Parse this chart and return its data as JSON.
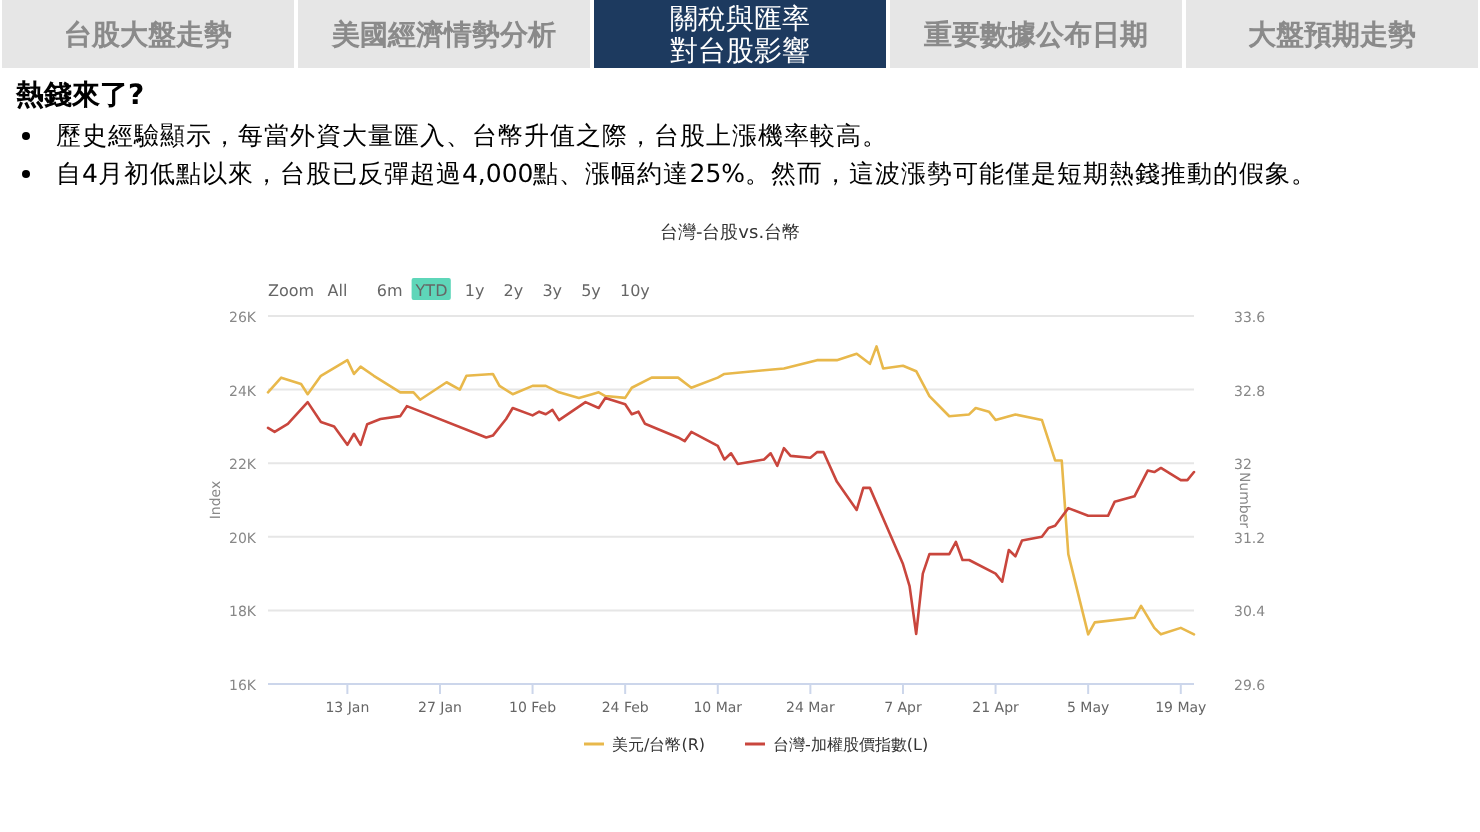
{
  "chart_data": {
    "type": "line",
    "title": "台灣-台股vs.台幣",
    "ylabel": "Index",
    "y2label": "Number",
    "annotations": [
      "台股大盤走勢",
      "美國經濟情勢分析",
      "關稅與匯率",
      "對台股影響",
      "重要數據公布日期",
      "大盤預期走勢",
      "熱錢來了?",
      "歷史經驗顯示，每當外資大量匯入、台幣升值之際，台股上漲機率較高。",
      "自4月初低點以來，台股已反彈超過4,000點、漲幅約達25%。然而，這波漲勢可能僅是短期熱錢推動的假象。",
      "Zoom",
      "All",
      "6m",
      "YTD",
      "1y",
      "2y",
      "3y",
      "5y",
      "10y"
    ],
    "xlim": [
      "--01-01",
      "--05-21"
    ],
    "xticks": [
      {
        "value": "--01-13",
        "label": "13 Jan"
      },
      {
        "value": "--01-27",
        "label": "27 Jan"
      },
      {
        "value": "--02-10",
        "label": "10 Feb"
      },
      {
        "value": "--02-24",
        "label": "24 Feb"
      },
      {
        "value": "--03-10",
        "label": "10 Mar"
      },
      {
        "value": "--03-24",
        "label": "24 Mar"
      },
      {
        "value": "--04-07",
        "label": "7 Apr"
      },
      {
        "value": "--04-21",
        "label": "21 Apr"
      },
      {
        "value": "--05-05",
        "label": "5 May"
      },
      {
        "value": "--05-19",
        "label": "19 May"
      }
    ],
    "ylim": [
      16000,
      26000
    ],
    "yticks": [
      {
        "value": 16000,
        "label": "16K"
      },
      {
        "value": 18000,
        "label": "18K"
      },
      {
        "value": 20000,
        "label": "20K"
      },
      {
        "value": 22000,
        "label": "22K"
      },
      {
        "value": 24000,
        "label": "24K"
      },
      {
        "value": 26000,
        "label": "26K"
      }
    ],
    "y2lim": [
      29.6,
      33.6
    ],
    "y2ticks": [
      29.6,
      30.4,
      31.2,
      32,
      32.8,
      33.6
    ],
    "grid": "y",
    "legend": "bottom",
    "marker": "none",
    "line_style": "solid",
    "series": [
      {
        "name": "美元/台幣(R)",
        "color": "#e8b84b",
        "axis": "y2",
        "x": [
          "--01-01",
          "--01-03",
          "--01-06",
          "--01-07",
          "--01-09",
          "--01-13",
          "--01-14",
          "--01-15",
          "--01-17",
          "--01-21",
          "--01-23",
          "--01-24",
          "--01-28",
          "--01-30",
          "--01-31",
          "--02-04",
          "--02-05",
          "--02-07",
          "--02-10",
          "--02-12",
          "--02-14",
          "--02-17",
          "--02-19",
          "--02-20",
          "--02-21",
          "--02-24",
          "--02-25",
          "--02-28",
          "--03-04",
          "--03-06",
          "--03-10",
          "--03-11",
          "--03-17",
          "--03-20",
          "--03-25",
          "--03-28",
          "--03-31",
          "--04-02",
          "--04-03",
          "--04-04",
          "--04-07",
          "--04-09",
          "--04-11",
          "--04-14",
          "--04-17",
          "--04-18",
          "--04-20",
          "--04-21",
          "--04-24",
          "--04-28",
          "--04-30",
          "--05-01",
          "--05-02",
          "--05-05",
          "--05-06",
          "--05-12",
          "--05-13",
          "--05-15",
          "--05-16",
          "--05-19",
          "--05-21"
        ],
        "values": [
          32.77,
          32.93,
          32.86,
          32.75,
          32.95,
          33.12,
          32.97,
          33.05,
          32.95,
          32.77,
          32.77,
          32.69,
          32.88,
          32.8,
          32.95,
          32.97,
          32.84,
          32.75,
          32.84,
          32.84,
          32.77,
          32.71,
          32.75,
          32.77,
          32.73,
          32.71,
          32.82,
          32.93,
          32.93,
          32.82,
          32.93,
          32.97,
          33.01,
          33.03,
          33.12,
          33.12,
          33.19,
          33.08,
          33.27,
          33.03,
          33.06,
          33.0,
          32.73,
          32.51,
          32.53,
          32.6,
          32.56,
          32.47,
          32.53,
          32.47,
          32.03,
          32.03,
          31.01,
          30.14,
          30.27,
          30.32,
          30.45,
          30.21,
          30.14,
          30.21,
          30.14
        ]
      },
      {
        "name": "台灣-加權股價指數(L)",
        "color": "#c9463d",
        "x": [
          "--01-01",
          "--01-02",
          "--01-04",
          "--01-07",
          "--01-09",
          "--01-11",
          "--01-13",
          "--01-14",
          "--01-15",
          "--01-16",
          "--01-18",
          "--01-21",
          "--01-22",
          "--02-03",
          "--02-04",
          "--02-06",
          "--02-07",
          "--02-10",
          "--02-11",
          "--02-12",
          "--02-13",
          "--02-14",
          "--02-18",
          "--02-20",
          "--02-21",
          "--02-24",
          "--02-25",
          "--02-26",
          "--02-27",
          "--03-04",
          "--03-05",
          "--03-06",
          "--03-10",
          "--03-11",
          "--03-12",
          "--03-13",
          "--03-17",
          "--03-18",
          "--03-19",
          "--03-20",
          "--03-21",
          "--03-24",
          "--03-25",
          "--03-26",
          "--03-28",
          "--03-31",
          "--04-01",
          "--04-02",
          "--04-07",
          "--04-08",
          "--04-09",
          "--04-10",
          "--04-11",
          "--04-14",
          "--04-15",
          "--04-16",
          "--04-17",
          "--04-21",
          "--04-22",
          "--04-23",
          "--04-24",
          "--04-25",
          "--04-28",
          "--04-29",
          "--04-30",
          "--05-02",
          "--05-05",
          "--05-08",
          "--05-09",
          "--05-12",
          "--05-14",
          "--05-15",
          "--05-16",
          "--05-19",
          "--05-20",
          "--05-21"
        ],
        "values": [
          22960,
          22850,
          23070,
          23660,
          23120,
          23000,
          22500,
          22800,
          22500,
          23060,
          23200,
          23280,
          23550,
          22700,
          22750,
          23200,
          23500,
          23300,
          23400,
          23330,
          23450,
          23170,
          23660,
          23500,
          23770,
          23600,
          23330,
          23400,
          23070,
          22700,
          22600,
          22850,
          22470,
          22100,
          22270,
          21980,
          22100,
          22270,
          21930,
          22410,
          22200,
          22150,
          22300,
          22300,
          21500,
          20730,
          21330,
          21330,
          19260,
          18660,
          17360,
          19000,
          19530,
          19530,
          19860,
          19370,
          19370,
          19000,
          18780,
          19640,
          19470,
          19900,
          20000,
          20240,
          20300,
          20780,
          20570,
          20570,
          20950,
          21100,
          21800,
          21760,
          21870,
          21540,
          21540,
          21760
        ]
      }
    ]
  }
}
